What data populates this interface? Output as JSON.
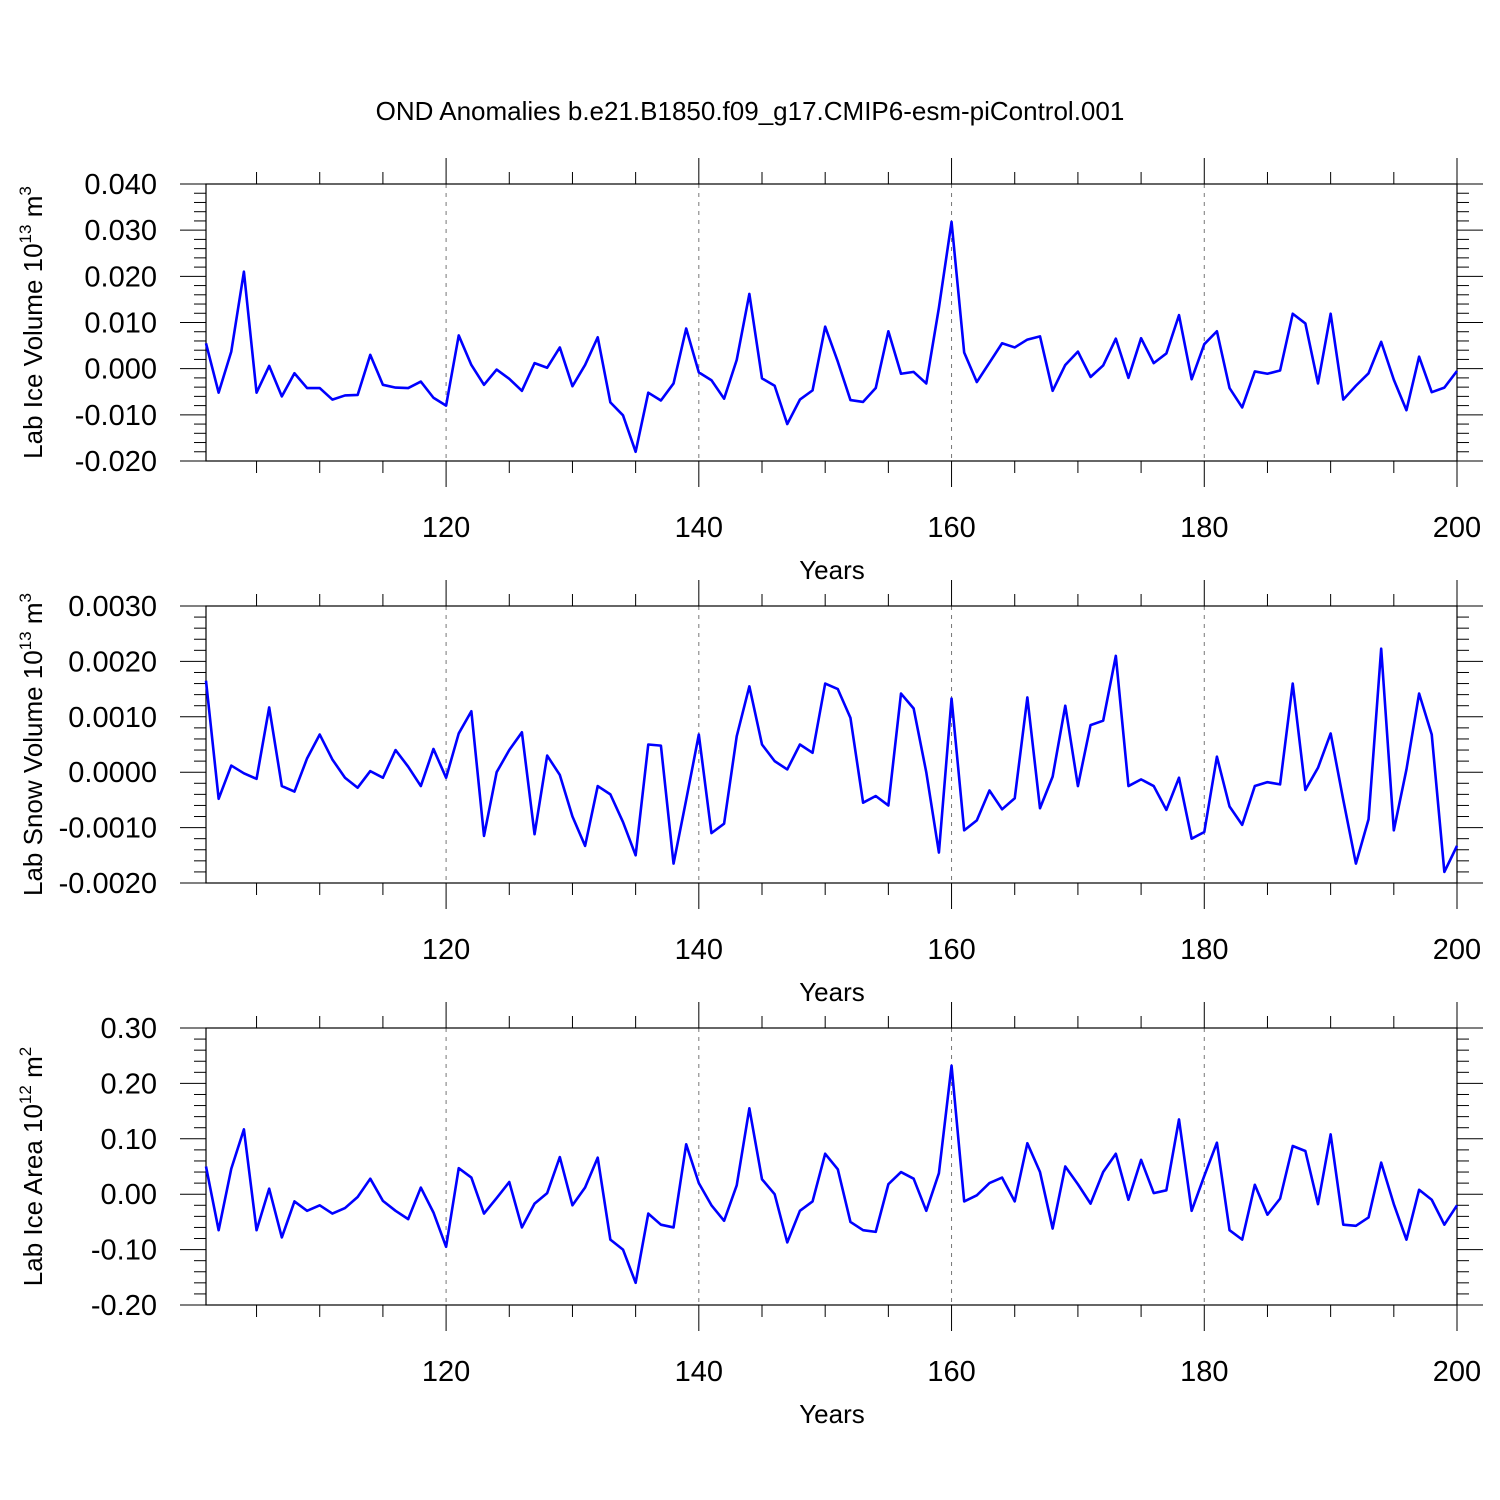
{
  "figure_title": "OND Anomalies b.e21.B1850.f09_g17.CMIP6-esm-piControl.001",
  "line_color": "#0000ff",
  "chart_data": [
    {
      "type": "line",
      "xlabel": "Years",
      "ylabel": "Lab Ice Volume 10",
      "ylabel_exp": "13",
      "ylabel_unit": " m",
      "ylabel_unit_exp": "3",
      "xlim": [
        101,
        200
      ],
      "ylim": [
        -0.02,
        0.04
      ],
      "x_ticks": [
        120,
        140,
        160,
        180,
        200
      ],
      "x_tick_labels": [
        "120",
        "140",
        "160",
        "180",
        "200"
      ],
      "y_ticks": [
        -0.02,
        -0.01,
        0.0,
        0.01,
        0.02,
        0.03,
        0.04
      ],
      "y_tick_labels": [
        "-0.020",
        "-0.010",
        "0.000",
        "0.010",
        "0.020",
        "0.030",
        "0.040"
      ],
      "series": [
        {
          "name": "Lab Ice Volume",
          "x_start": 101,
          "values": [
            0.0055,
            -0.0052,
            0.0037,
            0.021,
            -0.0052,
            0.0006,
            -0.006,
            -0.001,
            -0.0042,
            -0.0042,
            -0.0067,
            -0.0058,
            -0.0057,
            0.003,
            -0.0035,
            -0.0041,
            -0.0042,
            -0.0028,
            -0.0063,
            -0.008,
            0.0072,
            0.0008,
            -0.0035,
            -0.0002,
            -0.0022,
            -0.0048,
            0.0012,
            0.0002,
            0.0046,
            -0.0038,
            0.0008,
            0.0068,
            -0.0073,
            -0.0101,
            -0.018,
            -0.0052,
            -0.0069,
            -0.0032,
            0.0087,
            -0.0008,
            -0.0025,
            -0.0065,
            0.0019,
            0.0162,
            -0.0021,
            -0.0037,
            -0.012,
            -0.0067,
            -0.0047,
            0.0091,
            0.0015,
            -0.0068,
            -0.0072,
            -0.0042,
            0.0081,
            -0.0011,
            -0.0007,
            -0.0032,
            0.0132,
            0.0318,
            0.0035,
            -0.0029,
            0.0013,
            0.0055,
            0.0046,
            0.0063,
            0.007,
            -0.0048,
            0.0008,
            0.0037,
            -0.0018,
            0.0007,
            0.0065,
            -0.002,
            0.0066,
            0.0012,
            0.0033,
            0.0116,
            -0.0023,
            0.0053,
            0.0081,
            -0.0042,
            -0.0084,
            -0.0006,
            -0.0011,
            -0.0004,
            0.0119,
            0.0098,
            -0.0032,
            0.0119,
            -0.0067,
            -0.0037,
            -0.001,
            0.0058,
            -0.0024,
            -0.009,
            0.0026,
            -0.0051,
            -0.0041,
            -0.0005
          ]
        }
      ]
    },
    {
      "type": "line",
      "xlabel": "Years",
      "ylabel": "Lab Snow Volume 10",
      "ylabel_exp": "13",
      "ylabel_unit": " m",
      "ylabel_unit_exp": "3",
      "xlim": [
        101,
        200
      ],
      "ylim": [
        -0.002,
        0.003
      ],
      "x_ticks": [
        120,
        140,
        160,
        180,
        200
      ],
      "x_tick_labels": [
        "120",
        "140",
        "160",
        "180",
        "200"
      ],
      "y_ticks": [
        -0.002,
        -0.001,
        0.0,
        0.001,
        0.002,
        0.003
      ],
      "y_tick_labels": [
        "-0.0020",
        "-0.0010",
        "0.0000",
        "0.0010",
        "0.0020",
        "0.0030"
      ],
      "series": [
        {
          "name": "Lab Snow Volume",
          "x_start": 101,
          "values": [
            0.00165,
            -0.00048,
            0.00012,
            -2e-05,
            -0.00012,
            0.00117,
            -0.00025,
            -0.00035,
            0.00025,
            0.00068,
            0.00023,
            -0.0001,
            -0.00028,
            2e-05,
            -0.0001,
            0.0004,
            0.0001,
            -0.00025,
            0.00042,
            -0.0001,
            0.0007,
            0.0011,
            -0.00115,
            0.0,
            0.0004,
            0.00072,
            -0.00112,
            0.0003,
            -5e-05,
            -0.0008,
            -0.00133,
            -0.00025,
            -0.0004,
            -0.0009,
            -0.0015,
            0.0005,
            0.00048,
            -0.00165,
            -0.0005,
            0.00068,
            -0.0011,
            -0.00093,
            0.00065,
            0.00155,
            0.0005,
            0.0002,
            5e-05,
            0.0005,
            0.00035,
            0.0016,
            0.0015,
            0.00098,
            -0.00055,
            -0.00043,
            -0.0006,
            0.00142,
            0.00115,
            0.0,
            -0.00145,
            0.00133,
            -0.00105,
            -0.00087,
            -0.00033,
            -0.00067,
            -0.00047,
            0.00135,
            -0.00065,
            -8e-05,
            0.0012,
            -0.00025,
            0.00085,
            0.00093,
            0.0021,
            -0.00025,
            -0.00013,
            -0.00025,
            -0.00068,
            -0.0001,
            -0.0012,
            -0.00108,
            0.00028,
            -0.00062,
            -0.00095,
            -0.00025,
            -0.00018,
            -0.00022,
            0.0016,
            -0.00032,
            8e-05,
            0.0007,
            -0.0005,
            -0.00165,
            -0.00085,
            0.00223,
            -0.00105,
            5e-05,
            0.00142,
            0.00068,
            -0.0018,
            -0.00133
          ]
        }
      ]
    },
    {
      "type": "line",
      "xlabel": "Years",
      "ylabel": "Lab Ice Area 10",
      "ylabel_exp": "12",
      "ylabel_unit": " m",
      "ylabel_unit_exp": "2",
      "xlim": [
        101,
        200
      ],
      "ylim": [
        -0.2,
        0.3
      ],
      "x_ticks": [
        120,
        140,
        160,
        180,
        200
      ],
      "x_tick_labels": [
        "120",
        "140",
        "160",
        "180",
        "200"
      ],
      "y_ticks": [
        -0.2,
        -0.1,
        0.0,
        0.1,
        0.2,
        0.3
      ],
      "y_tick_labels": [
        "-0.20",
        "-0.10",
        "0.00",
        "0.10",
        "0.20",
        "0.30"
      ],
      "series": [
        {
          "name": "Lab Ice Area",
          "x_start": 101,
          "values": [
            0.05,
            -0.065,
            0.046,
            0.117,
            -0.065,
            0.01,
            -0.078,
            -0.013,
            -0.03,
            -0.02,
            -0.035,
            -0.025,
            -0.005,
            0.028,
            -0.012,
            -0.03,
            -0.045,
            0.012,
            -0.033,
            -0.095,
            0.047,
            0.03,
            -0.035,
            -0.007,
            0.022,
            -0.06,
            -0.017,
            0.002,
            0.067,
            -0.02,
            0.012,
            0.066,
            -0.082,
            -0.1,
            -0.16,
            -0.035,
            -0.055,
            -0.06,
            0.09,
            0.02,
            -0.02,
            -0.048,
            0.016,
            0.155,
            0.027,
            0.0,
            -0.087,
            -0.03,
            -0.013,
            0.073,
            0.045,
            -0.05,
            -0.065,
            -0.068,
            0.018,
            0.04,
            0.028,
            -0.03,
            0.038,
            0.232,
            -0.013,
            -0.002,
            0.02,
            0.03,
            -0.013,
            0.092,
            0.04,
            -0.062,
            0.05,
            0.018,
            -0.017,
            0.04,
            0.073,
            -0.01,
            0.062,
            0.002,
            0.007,
            0.135,
            -0.03,
            0.033,
            0.093,
            -0.065,
            -0.082,
            0.017,
            -0.037,
            -0.008,
            0.087,
            0.078,
            -0.018,
            0.108,
            -0.055,
            -0.057,
            -0.042,
            0.057,
            -0.018,
            -0.082,
            0.008,
            -0.01,
            -0.055,
            -0.02
          ]
        }
      ]
    }
  ]
}
